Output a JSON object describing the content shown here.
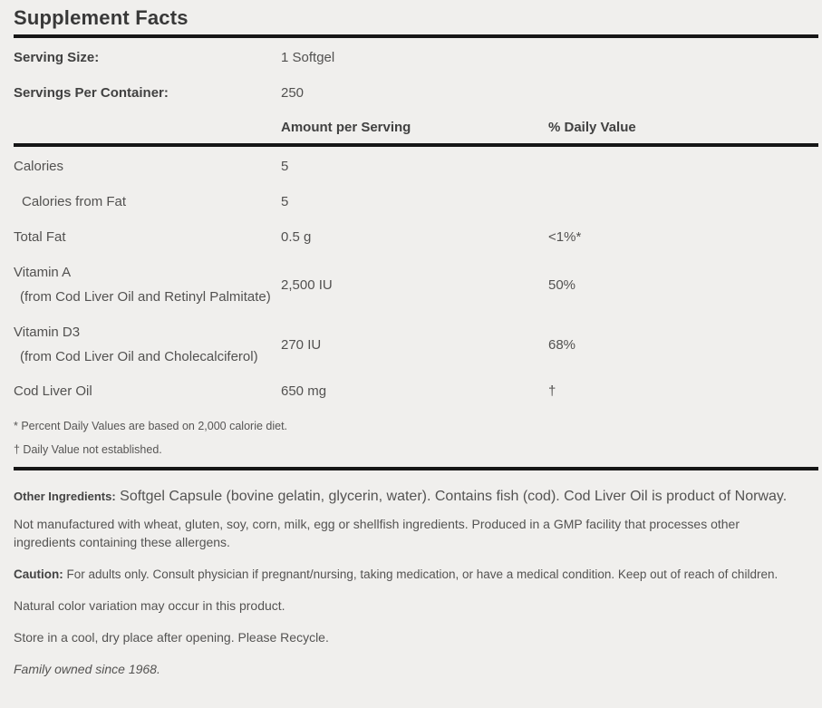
{
  "title": "Supplement Facts",
  "serving_info": [
    {
      "label": "Serving Size:",
      "value": "1 Softgel"
    },
    {
      "label": "Servings Per Container:",
      "value": "250"
    }
  ],
  "columns": {
    "amount": "Amount per Serving",
    "dv": "% Daily Value"
  },
  "rows": [
    {
      "name": "Calories",
      "sub": "",
      "amount": "5",
      "dv": ""
    },
    {
      "name": "Calories from Fat",
      "sub": "",
      "amount": "5",
      "dv": ""
    },
    {
      "name": "Total Fat",
      "sub": "",
      "amount": "0.5 g",
      "dv": "<1%*"
    },
    {
      "name": "Vitamin A",
      "sub": "(from Cod Liver Oil and Retinyl Palmitate)",
      "amount": "2,500 IU",
      "dv": "50%"
    },
    {
      "name": "Vitamin D3",
      "sub": "(from Cod Liver Oil and Cholecalciferol)",
      "amount": "270 IU",
      "dv": "68%"
    },
    {
      "name": "Cod Liver Oil",
      "sub": "",
      "amount": "650 mg",
      "dv": "†"
    }
  ],
  "footnotes": [
    "* Percent Daily Values are based on 2,000 calorie diet.",
    "† Daily Value not established."
  ],
  "other_ingredients": {
    "label": "Other Ingredients:",
    "text": "Softgel Capsule (bovine gelatin, glycerin, water). Contains fish (cod). Cod Liver Oil is product of Norway."
  },
  "allergen_note": "Not manufactured with wheat, gluten, soy, corn, milk, egg or shellfish ingredients. Produced in a GMP facility that processes other ingredients containing these allergens.",
  "caution": {
    "label": "Caution:",
    "text": "For adults only. Consult physician if pregnant/nursing, taking medication, or have a medical condition. Keep out of reach of children."
  },
  "notes": [
    "Natural color variation may occur in this product.",
    "Store in a cool, dry place after opening. Please Recycle.",
    "Family owned since 1968."
  ]
}
